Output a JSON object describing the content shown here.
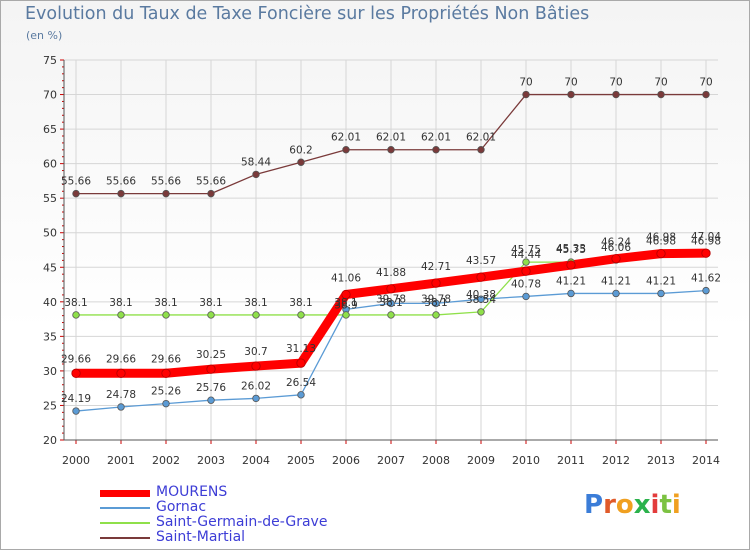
{
  "chart_data": {
    "type": "line",
    "title": "Evolution du Taux de Taxe Foncière sur les Propriétés Non Bâties",
    "subtitle": "(en %)",
    "x": [
      "2000",
      "2001",
      "2002",
      "2003",
      "2004",
      "2005",
      "2006",
      "2007",
      "2008",
      "2009",
      "2010",
      "2011",
      "2012",
      "2013",
      "2014"
    ],
    "ylim": [
      20,
      75
    ],
    "yticks": [
      "20",
      "25",
      "30",
      "35",
      "40",
      "45",
      "50",
      "55",
      "60",
      "65",
      "70",
      "75"
    ],
    "series": [
      {
        "name": "MOURENS",
        "color": "#ff0000",
        "values": [
          29.66,
          29.66,
          29.66,
          30.25,
          30.7,
          31.13,
          41.06,
          41.88,
          42.71,
          43.57,
          44.44,
          45.33,
          46.24,
          46.98,
          47.04
        ],
        "labels": [
          "29.66",
          "29.66",
          "29.66",
          "30.25",
          "30.7",
          "31.13",
          "41.06",
          "41.88",
          "42.71",
          "43.57",
          "44.44",
          "45.33",
          "46.24",
          "46.98",
          "47.04"
        ]
      },
      {
        "name": "Gornac",
        "color": "#5b9bd5",
        "values": [
          24.19,
          24.78,
          25.26,
          25.76,
          26.02,
          26.54,
          38.9,
          39.78,
          39.78,
          40.38,
          40.78,
          41.21,
          41.21,
          41.21,
          41.62
        ],
        "labels": [
          "24.19",
          "24.78",
          "25.26",
          "25.76",
          "26.02",
          "26.54",
          "38.9",
          "39.78",
          "39.78",
          "40.38",
          "40.78",
          "41.21",
          "41.21",
          "41.21",
          "41.62"
        ]
      },
      {
        "name": "Saint-Germain-de-Grave",
        "color": "#8fe04a",
        "values": [
          38.1,
          38.1,
          38.1,
          38.1,
          38.1,
          38.1,
          38.1,
          38.1,
          38.1,
          38.54,
          45.75,
          45.75,
          46.06,
          46.98,
          46.98
        ],
        "labels": [
          "38.1",
          "38.1",
          "38.1",
          "38.1",
          "38.1",
          "38.1",
          "38.1",
          "38.1",
          "38.1",
          "38.54",
          "45.75",
          "45.75",
          "46.06",
          "46.98",
          "46.98"
        ]
      },
      {
        "name": "Saint-Martial",
        "color": "#7a3a3a",
        "values": [
          55.66,
          55.66,
          55.66,
          55.66,
          58.44,
          60.2,
          62.01,
          62.01,
          62.01,
          62.01,
          70,
          70,
          70,
          70,
          70
        ],
        "labels": [
          "55.66",
          "55.66",
          "55.66",
          "55.66",
          "58.44",
          "60.2",
          "62.01",
          "62.01",
          "62.01",
          "62.01",
          "70",
          "70",
          "70",
          "70",
          "70"
        ]
      }
    ]
  },
  "logo": {
    "text": "Proxiti"
  }
}
